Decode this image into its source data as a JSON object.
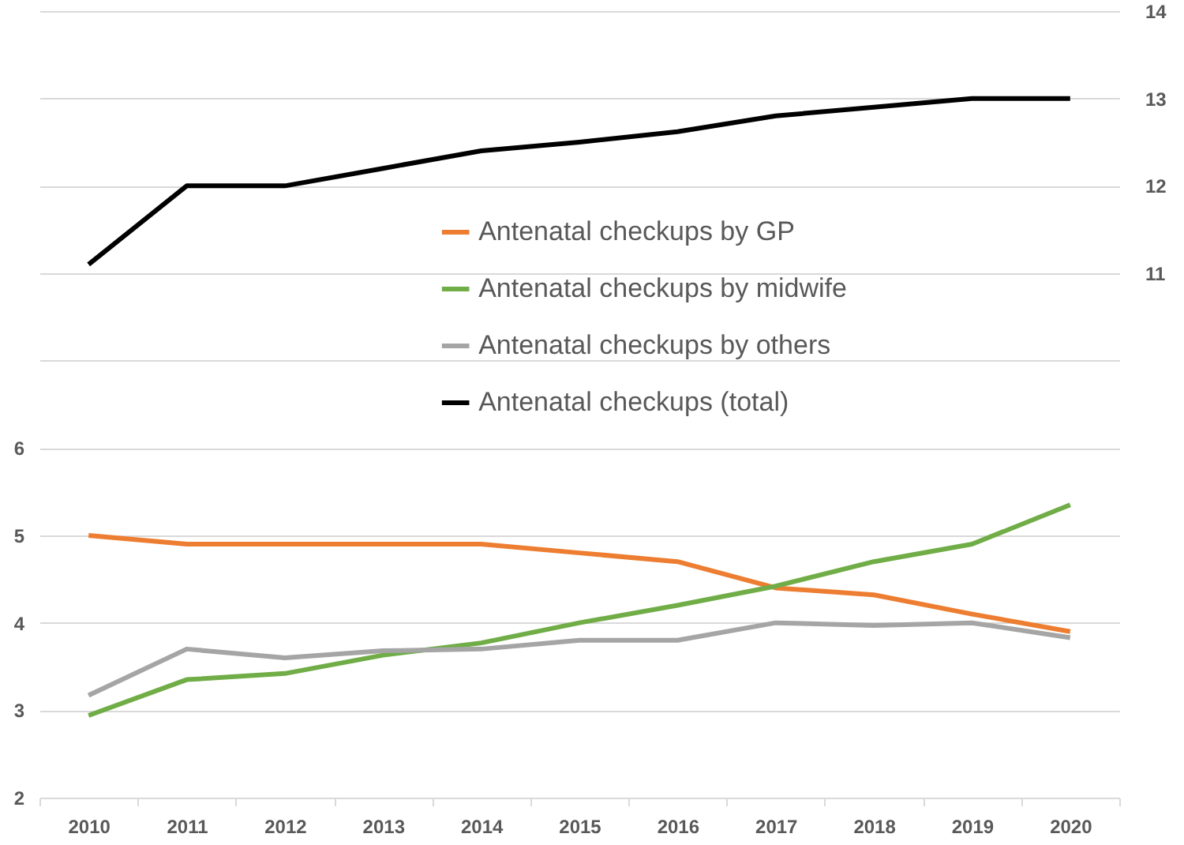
{
  "chart_data": {
    "type": "line",
    "categories": [
      "2010",
      "2011",
      "2012",
      "2013",
      "2014",
      "2015",
      "2016",
      "2017",
      "2018",
      "2019",
      "2020"
    ],
    "series": [
      {
        "name": "Antenatal checkups by GP",
        "color": "#ed7d31",
        "values": [
          5.0,
          4.9,
          4.9,
          4.9,
          4.9,
          4.8,
          4.7,
          4.4,
          4.32,
          4.1,
          3.9
        ]
      },
      {
        "name": "Antenatal checkups by midwife",
        "color": "#70ad47",
        "values": [
          2.94,
          3.35,
          3.42,
          3.63,
          3.77,
          4.0,
          4.2,
          4.42,
          4.7,
          4.9,
          5.35
        ]
      },
      {
        "name": "Antenatal checkups by others",
        "color": "#a5a5a5",
        "values": [
          3.17,
          3.7,
          3.6,
          3.68,
          3.7,
          3.8,
          3.8,
          4.0,
          3.97,
          4.0,
          3.83
        ]
      },
      {
        "name": "Antenatal checkups (total)",
        "color": "#000000",
        "axis": "y2",
        "values": [
          11.1,
          12.0,
          12.0,
          12.2,
          12.4,
          12.5,
          12.62,
          12.8,
          12.9,
          13.0,
          13.0
        ]
      }
    ],
    "ylim": [
      2,
      11
    ],
    "yticks": [
      2,
      3,
      4,
      5,
      6,
      {
        "value": 7,
        "label": null
      },
      {
        "value": 8,
        "label": null
      },
      {
        "value": 9,
        "label": null
      },
      {
        "value": 10,
        "label": null
      },
      {
        "value": 11,
        "label": null
      }
    ],
    "y2lim": [
      5,
      14
    ],
    "y2ticks": [
      11,
      12,
      13,
      14
    ],
    "grid": "y",
    "legend": "top",
    "line_style": "solid",
    "marker": "none"
  }
}
